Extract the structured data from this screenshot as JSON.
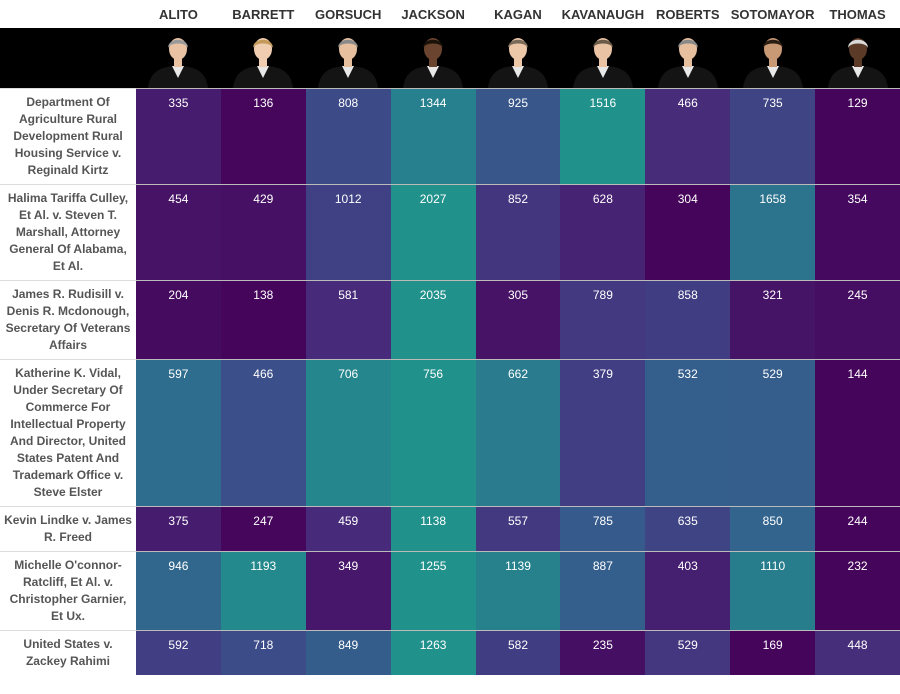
{
  "chart_data": {
    "type": "heatmap",
    "columns": [
      "ALITO",
      "BARRETT",
      "GORSUCH",
      "JACKSON",
      "KAGAN",
      "KAVANAUGH",
      "ROBERTS",
      "SOTOMAYOR",
      "THOMAS"
    ],
    "rows": [
      "Department Of Agriculture Rural Development Rural Housing Service v. Reginald Kirtz",
      "Halima Tariffa Culley, Et Al. v. Steven T. Marshall, Attorney General Of Alabama, Et Al.",
      "James R. Rudisill v. Denis R. Mcdonough, Secretary Of Veterans Affairs",
      "Katherine K. Vidal, Under Secretary Of Commerce For Intellectual Property And Director, United States Patent And Trademark Office v. Steve Elster",
      "Kevin Lindke v. James R. Freed",
      "Michelle O'connor-Ratcliff, Et Al. v. Christopher Garnier, Et Ux.",
      "United States v. Zackey Rahimi"
    ],
    "values": [
      [
        335,
        136,
        808,
        1344,
        925,
        1516,
        466,
        735,
        129
      ],
      [
        454,
        429,
        1012,
        2027,
        852,
        628,
        304,
        1658,
        354
      ],
      [
        204,
        138,
        581,
        2035,
        305,
        789,
        858,
        321,
        245
      ],
      [
        597,
        466,
        706,
        756,
        662,
        379,
        532,
        529,
        144
      ],
      [
        375,
        247,
        459,
        1138,
        557,
        785,
        635,
        850,
        244
      ],
      [
        946,
        1193,
        349,
        1255,
        1139,
        887,
        403,
        1110,
        232
      ],
      [
        592,
        718,
        849,
        1263,
        582,
        235,
        529,
        169,
        448
      ]
    ],
    "color_scale": [
      "#45055b",
      "#472d7b",
      "#3c4c89",
      "#2e6e8e",
      "#21918c"
    ],
    "scale_basis": "row"
  },
  "colors": {
    "photo_band": "#000000",
    "robe": "#141414",
    "header_text": "#333333",
    "row_label_text": "#555555"
  }
}
